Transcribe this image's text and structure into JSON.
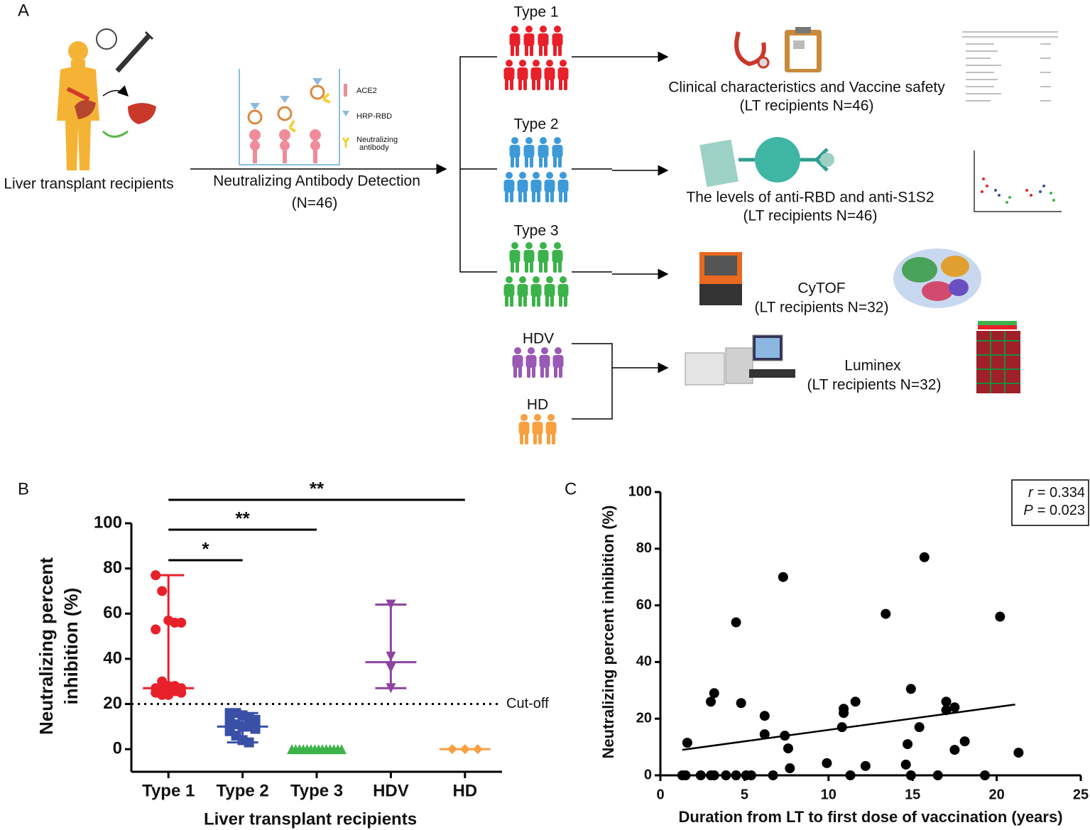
{
  "panel_a": {
    "label": "A",
    "source": "Liver transplant recipients",
    "assay": {
      "title": "Neutralizing Antibody Detection",
      "n": "(N=46)",
      "legend": [
        [
          "ACE2"
        ],
        [
          "HRP-RBD"
        ],
        [
          "Neutralizing",
          "antibody"
        ]
      ]
    },
    "groups": [
      "Type 1",
      "Type 2",
      "Type 3",
      "HDV",
      "HD"
    ],
    "outcomes": [
      {
        "title": "Clinical characteristics and Vaccine safety",
        "n": "(LT recipients N=46)"
      },
      {
        "title": "The levels of anti-RBD and anti-S1S2",
        "n": "(LT recipients N=46)"
      },
      {
        "title": "CyTOF",
        "n": "(LT recipients N=32)"
      },
      {
        "title": "Luminex",
        "n": "(LT recipients N=32)"
      }
    ]
  },
  "chart_data": [
    {
      "type": "strip",
      "panel": "B",
      "xlabel": "Liver transplant recipients",
      "ylabel": [
        "Neutralizing percent",
        "inhibition (%)"
      ],
      "categories": [
        "Type 1",
        "Type 2",
        "Type 3",
        "HDV",
        "HD"
      ],
      "series": [
        {
          "color": "#e8202a",
          "marker": "circle",
          "median": 27,
          "values": [
            77,
            70,
            57,
            56,
            56,
            53,
            30,
            28,
            28,
            27,
            27,
            27,
            26,
            26,
            25,
            25,
            24,
            24
          ]
        },
        {
          "color": "#3a4fa6",
          "marker": "square",
          "median": 10,
          "values": [
            16,
            16,
            15,
            14,
            13,
            12,
            11,
            10,
            10,
            9,
            8,
            6,
            4,
            3
          ]
        },
        {
          "color": "#3cb34a",
          "marker": "triangle-up",
          "median": 0,
          "values": [
            0,
            0,
            0,
            0,
            0,
            0,
            0,
            0,
            0,
            0,
            0,
            0,
            0,
            0
          ]
        },
        {
          "color": "#8e44a0",
          "marker": "triangle-down",
          "median": 38.5,
          "values": [
            64,
            41,
            36,
            27
          ]
        },
        {
          "color": "#f7a040",
          "marker": "diamond",
          "median": 0,
          "values": [
            0,
            0,
            0
          ]
        }
      ],
      "cutoff": 20,
      "cutoff_label": "Cut-off",
      "comparisons": [
        {
          "label": "*",
          "groups": [
            "Type 1",
            "Type 2"
          ]
        },
        {
          "label": "**",
          "groups": [
            "Type 1",
            "Type 3"
          ]
        },
        {
          "label": "**",
          "groups": [
            "Type 1",
            "HD"
          ]
        }
      ],
      "ylim": [
        -10,
        100
      ],
      "yticks": [
        0,
        20,
        40,
        60,
        80,
        100
      ]
    },
    {
      "type": "scatter",
      "panel": "C",
      "xlabel": "Duration from LT to first dose of vaccination (years)",
      "ylabel": "Neutralizing percent inhibition (%)",
      "color": "#000000",
      "x": [
        1.6,
        1.3,
        1.5,
        2.4,
        3.0,
        3.2,
        3.9,
        4.5,
        5.1,
        5.4,
        6.7,
        11.3,
        14.9,
        16.5,
        19.3,
        3.0,
        3.2,
        4.5,
        4.8,
        6.2,
        6.2,
        7.3,
        7.4,
        7.6,
        7.7,
        9.9,
        10.8,
        10.9,
        10.9,
        11.6,
        12.2,
        13.4,
        14.6,
        14.7,
        14.9,
        15.4,
        15.7,
        17.0,
        17.0,
        17.5,
        17.5,
        18.1,
        20.2,
        21.3
      ],
      "y": [
        11.5,
        0,
        0,
        0,
        0,
        0,
        0,
        0,
        0,
        0,
        0,
        0,
        0,
        0,
        0,
        26,
        29,
        54,
        25.5,
        21,
        14.5,
        70,
        14,
        9.5,
        2.5,
        4.3,
        17,
        23.5,
        22,
        26,
        3.3,
        57,
        3.8,
        11,
        30.5,
        17,
        77,
        26,
        23,
        24,
        9,
        12,
        56,
        8
      ],
      "fit": {
        "x": [
          1.3,
          21.1
        ],
        "y": [
          9,
          25
        ]
      },
      "stats": [
        {
          "symbol": "r",
          "value": "= 0.334"
        },
        {
          "symbol": "P",
          "value": "= 0.023"
        }
      ],
      "xlim": [
        0,
        25
      ],
      "xticks": [
        0,
        5,
        10,
        15,
        20,
        25
      ],
      "ylim": [
        0,
        100
      ],
      "yticks": [
        0,
        20,
        40,
        60,
        80,
        100
      ]
    }
  ]
}
